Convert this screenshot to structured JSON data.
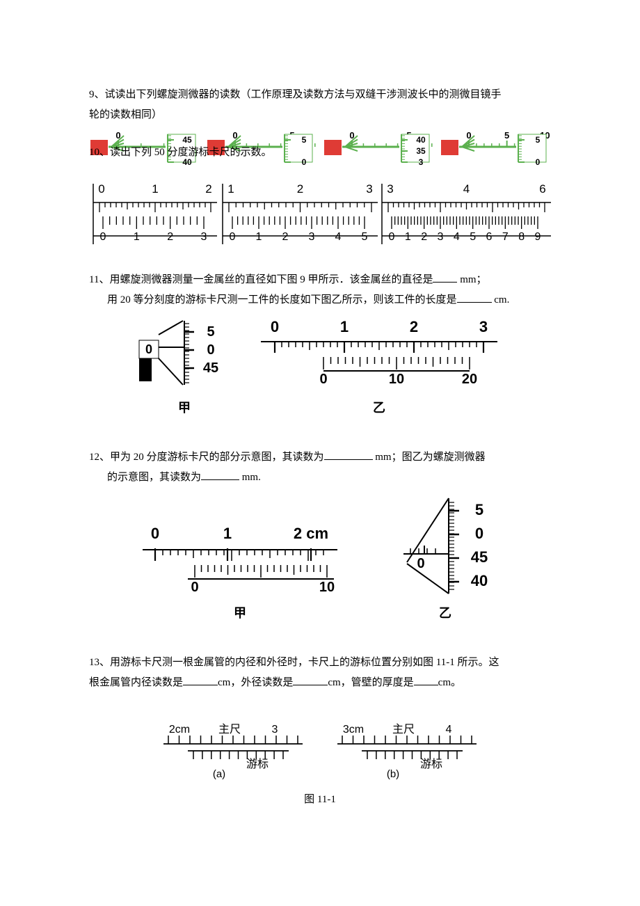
{
  "q9": {
    "text_l1": "9、试读出下列螺旋测微器的读数（工作原理及读数方法与双缝干涉测波长中的测微目镜手",
    "text_l2": "轮的读数相同）",
    "q10_text": "读出下列 50 分度游标卡尺的示数。",
    "micrometers": [
      {
        "mainLabels": [
          "0"
        ],
        "drumLabels": [
          "45",
          "40"
        ],
        "mainColor": "#5bb04e",
        "boxColor": "#df3b35"
      },
      {
        "mainLabels": [
          "0",
          "5"
        ],
        "drumLabels": [
          "5",
          "0"
        ],
        "mainColor": "#5bb04e",
        "boxColor": "#df3b35"
      },
      {
        "mainLabels": [
          "0",
          "5"
        ],
        "drumLabels": [
          "40",
          "35",
          "3"
        ],
        "mainColor": "#5bb04e",
        "boxColor": "#df3b35"
      },
      {
        "mainLabels": [
          "0",
          "5",
          "10"
        ],
        "drumLabels": [
          "5",
          "0"
        ],
        "mainColor": "#5bb04e",
        "boxColor": "#df3b35"
      }
    ],
    "verniers": [
      {
        "mainStart": 0,
        "mainEnd": 2,
        "verStart": 0,
        "verEnd": 3
      },
      {
        "mainStart": 1,
        "mainEnd": 3,
        "verStart": 0,
        "verEnd": 5
      },
      {
        "mainStart": 3,
        "mainEnd": 6,
        "verStart": 0,
        "verEnd": 9
      }
    ]
  },
  "q11": {
    "text_l1a": "11、用螺旋测微器测量一金属丝的直径如下图 9 甲所示．该金属丝的直径是",
    "text_l1b": " mm；",
    "text_l2a": "用 20 等分刻度的游标卡尺测一工件的长度如下图乙所示，则该工件的长度是",
    "text_l2b": " cm.",
    "micrometer": {
      "mainLabel": "0",
      "drumLabels": [
        "5",
        "0",
        "45"
      ]
    },
    "vernier": {
      "mainLabels": [
        "0",
        "1",
        "2",
        "3"
      ],
      "verLabels": [
        "0",
        "10",
        "20"
      ]
    },
    "cap1": "甲",
    "cap2": "乙"
  },
  "q12": {
    "text_l1a": "12、甲为 20 分度游标卡尺的部分示意图，其读数为",
    "text_l1b": " mm；图乙为螺旋测微器",
    "text_l2a": "的示意图，其读数为",
    "text_l2b": " mm.",
    "vernier": {
      "mainLabels": [
        "0",
        "1",
        "2 cm"
      ],
      "verLabels": [
        "0",
        "10"
      ]
    },
    "micrometer": {
      "mainLabel": "0",
      "drumLabels": [
        "5",
        "0",
        "45",
        "40"
      ]
    },
    "cap1": "甲",
    "cap2": "乙"
  },
  "q13": {
    "text_l1": "13、用游标卡尺测一根金属管的内径和外径时，卡尺上的游标位置分别如图 11-1 所示。这",
    "text_l2a": "根金属管内径读数是",
    "text_l2b": "cm，外径读数是",
    "text_l2c": "cm，管壁的厚度是",
    "text_l2d": "cm。",
    "a": {
      "top1": "2cm",
      "top2": "主尺",
      "top3": "3",
      "bot": "游标",
      "cap": "(a)"
    },
    "b": {
      "top1": "3cm",
      "top2": "主尺",
      "top3": "4",
      "bot": "游标",
      "cap": "(b)"
    },
    "figcap": "图 11-1"
  }
}
